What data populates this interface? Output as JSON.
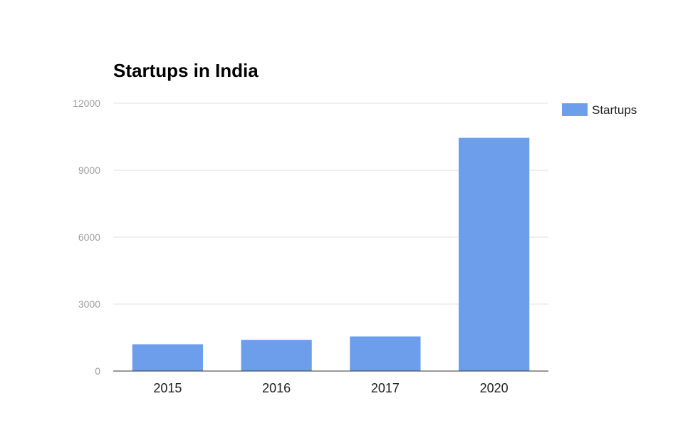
{
  "chart_data": {
    "type": "bar",
    "title": "Startups in India",
    "categories": [
      "2015",
      "2016",
      "2017",
      "2020"
    ],
    "series": [
      {
        "name": "Startups",
        "values": [
          1200,
          1400,
          1550,
          10450
        ],
        "color": "#6d9eeb"
      }
    ],
    "ylim": [
      0,
      12000
    ],
    "yticks": [
      "0",
      "3000",
      "6000",
      "9000",
      "12000"
    ],
    "grid": true,
    "legend": "right"
  }
}
